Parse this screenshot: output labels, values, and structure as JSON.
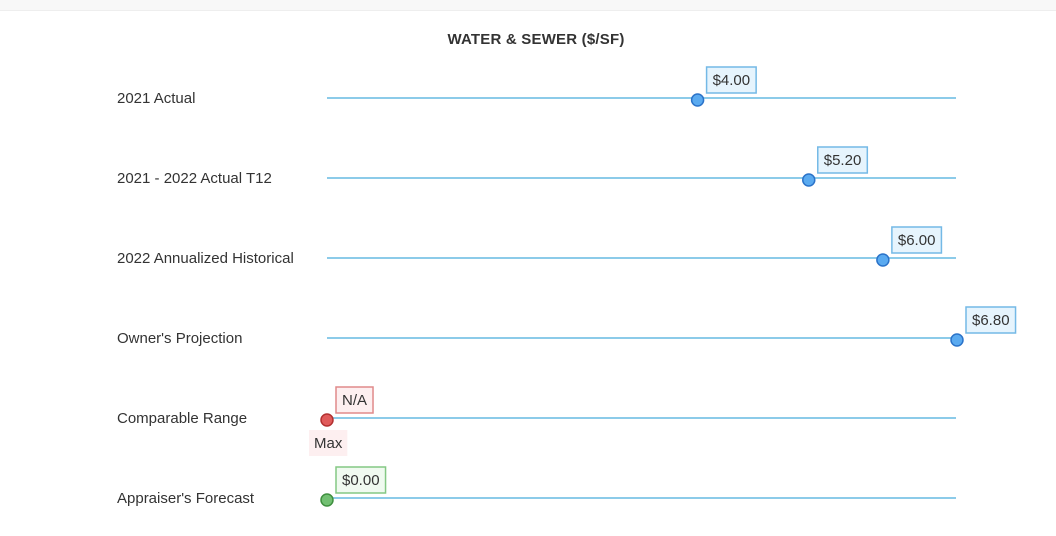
{
  "chart_data": {
    "type": "scatter",
    "title": "WATER & SEWER ($/SF)",
    "xlim": [
      0,
      6.8
    ],
    "grid": false,
    "colors": {
      "line": "#8ccbe9",
      "blue_fill": "#5aaaf0",
      "blue_stroke": "#2b73c9",
      "blue_box_fill": "#e6f4fd",
      "blue_box_stroke": "#74b9e6",
      "red_fill": "#e05a5a",
      "red_stroke": "#b23030",
      "red_box_fill": "#fdeff0",
      "red_box_stroke": "#e08a8a",
      "green_fill": "#72c072",
      "green_stroke": "#3f8f3f",
      "green_box_fill": "#f0faf0",
      "green_box_stroke": "#84c884"
    },
    "rows": [
      {
        "label": "2021 Actual",
        "value": 4.0,
        "display": "$4.00",
        "color": "blue"
      },
      {
        "label": "2021 - 2022 Actual T12",
        "value": 5.2,
        "display": "$5.20",
        "color": "blue"
      },
      {
        "label": "2022 Annualized Historical",
        "value": 6.0,
        "display": "$6.00",
        "color": "blue"
      },
      {
        "label": "Owner's Projection",
        "value": 6.8,
        "display": "$6.80",
        "color": "blue"
      },
      {
        "label": "Comparable Range",
        "value": 0,
        "display": "N/A",
        "color": "red",
        "below_label": "Max"
      },
      {
        "label": "Appraiser's Forecast",
        "value": 0.0,
        "display": "$0.00",
        "color": "green"
      }
    ]
  }
}
